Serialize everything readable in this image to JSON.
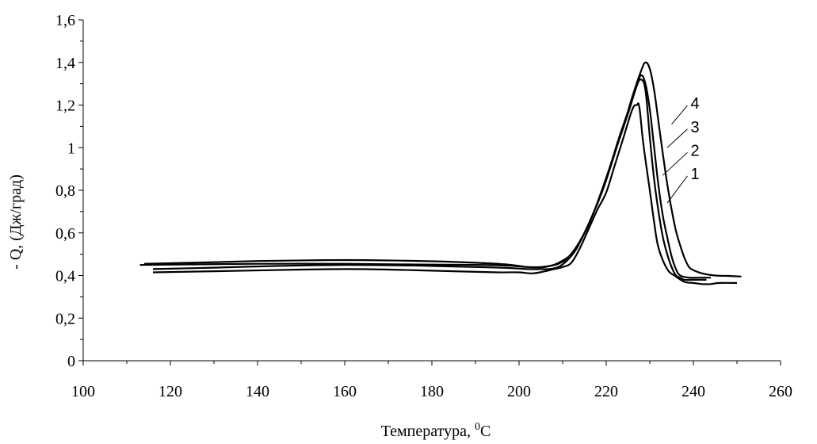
{
  "chart_data": {
    "type": "line",
    "title": "",
    "xlabel": "Температура, ",
    "xlabel_sup": "0",
    "xlabel_unit": "C",
    "ylabel": "- Q, (Дж/град)",
    "xlim": [
      100,
      260
    ],
    "ylim": [
      0,
      1.6
    ],
    "x_ticks": [
      100,
      120,
      140,
      160,
      180,
      200,
      220,
      240,
      260
    ],
    "x_tick_labels": [
      "100",
      "120",
      "140",
      "160",
      "180",
      "200",
      "220",
      "240",
      "260"
    ],
    "y_ticks": [
      0,
      0.2,
      0.4,
      0.6,
      0.8,
      1.0,
      1.2,
      1.4,
      1.6
    ],
    "y_tick_labels": [
      "0",
      "0,2",
      "0,4",
      "0,6",
      "0,8",
      "1",
      "1,2",
      "1,4",
      "1,6"
    ],
    "grid": false,
    "legend": "none",
    "line_color": "#000000",
    "series": [
      {
        "name": "1",
        "label_at": [
          239,
          0.86
        ],
        "leader_to": [
          234,
          0.74
        ],
        "points": [
          [
            116,
            0.415
          ],
          [
            130,
            0.42
          ],
          [
            150,
            0.428
          ],
          [
            160,
            0.43
          ],
          [
            170,
            0.428
          ],
          [
            185,
            0.42
          ],
          [
            195,
            0.415
          ],
          [
            200,
            0.415
          ],
          [
            203,
            0.41
          ],
          [
            206,
            0.42
          ],
          [
            208,
            0.43
          ],
          [
            210,
            0.44
          ],
          [
            212,
            0.46
          ],
          [
            214,
            0.53
          ],
          [
            216,
            0.62
          ],
          [
            218,
            0.71
          ],
          [
            220,
            0.79
          ],
          [
            222,
            0.92
          ],
          [
            224,
            1.05
          ],
          [
            226,
            1.18
          ],
          [
            227,
            1.2
          ],
          [
            227.6,
            1.19
          ],
          [
            228.5,
            1.02
          ],
          [
            230,
            0.8
          ],
          [
            231,
            0.65
          ],
          [
            232,
            0.53
          ],
          [
            234,
            0.43
          ],
          [
            236,
            0.395
          ],
          [
            238,
            0.37
          ],
          [
            240,
            0.365
          ],
          [
            242,
            0.36
          ],
          [
            244,
            0.36
          ],
          [
            246,
            0.365
          ],
          [
            250,
            0.365
          ]
        ]
      },
      {
        "name": "2",
        "label_at": [
          239,
          0.97
        ],
        "leader_to": [
          233,
          0.87
        ],
        "points": [
          [
            116,
            0.43
          ],
          [
            130,
            0.437
          ],
          [
            145,
            0.445
          ],
          [
            160,
            0.45
          ],
          [
            175,
            0.447
          ],
          [
            190,
            0.44
          ],
          [
            198,
            0.435
          ],
          [
            202,
            0.43
          ],
          [
            205,
            0.43
          ],
          [
            207,
            0.43
          ],
          [
            209,
            0.44
          ],
          [
            211,
            0.47
          ],
          [
            213,
            0.52
          ],
          [
            215,
            0.6
          ],
          [
            217,
            0.69
          ],
          [
            219,
            0.8
          ],
          [
            221,
            0.92
          ],
          [
            223,
            1.05
          ],
          [
            225,
            1.17
          ],
          [
            227,
            1.29
          ],
          [
            228,
            1.32
          ],
          [
            229,
            1.27
          ],
          [
            230,
            1.05
          ],
          [
            231,
            0.85
          ],
          [
            232,
            0.7
          ],
          [
            233,
            0.58
          ],
          [
            234,
            0.5
          ],
          [
            235,
            0.44
          ],
          [
            236,
            0.4
          ],
          [
            237,
            0.39
          ],
          [
            238,
            0.38
          ],
          [
            240,
            0.38
          ],
          [
            243,
            0.38
          ]
        ]
      },
      {
        "name": "3",
        "label_at": [
          239,
          1.08
        ],
        "leader_to": [
          234,
          1.0
        ],
        "points": [
          [
            113,
            0.45
          ],
          [
            125,
            0.452
          ],
          [
            140,
            0.455
          ],
          [
            160,
            0.455
          ],
          [
            175,
            0.452
          ],
          [
            190,
            0.45
          ],
          [
            197,
            0.447
          ],
          [
            202,
            0.44
          ],
          [
            205,
            0.44
          ],
          [
            207,
            0.445
          ],
          [
            209,
            0.455
          ],
          [
            211,
            0.48
          ],
          [
            213,
            0.53
          ],
          [
            215,
            0.6
          ],
          [
            217,
            0.69
          ],
          [
            219,
            0.79
          ],
          [
            221,
            0.91
          ],
          [
            223,
            1.04
          ],
          [
            225,
            1.16
          ],
          [
            227,
            1.29
          ],
          [
            228,
            1.34
          ],
          [
            229,
            1.3
          ],
          [
            230,
            1.18
          ],
          [
            231,
            1.0
          ],
          [
            232,
            0.82
          ],
          [
            233,
            0.68
          ],
          [
            234,
            0.58
          ],
          [
            235,
            0.49
          ],
          [
            236,
            0.43
          ],
          [
            237,
            0.4
          ],
          [
            239,
            0.39
          ],
          [
            241,
            0.39
          ],
          [
            244,
            0.39
          ]
        ]
      },
      {
        "name": "4",
        "label_at": [
          239,
          1.19
        ],
        "leader_to": [
          235,
          1.11
        ],
        "points": [
          [
            114,
            0.455
          ],
          [
            125,
            0.46
          ],
          [
            140,
            0.468
          ],
          [
            155,
            0.472
          ],
          [
            165,
            0.472
          ],
          [
            180,
            0.467
          ],
          [
            190,
            0.46
          ],
          [
            197,
            0.452
          ],
          [
            202,
            0.44
          ],
          [
            204,
            0.438
          ],
          [
            206,
            0.44
          ],
          [
            208,
            0.45
          ],
          [
            210,
            0.47
          ],
          [
            212,
            0.5
          ],
          [
            214,
            0.56
          ],
          [
            216,
            0.64
          ],
          [
            218,
            0.74
          ],
          [
            220,
            0.85
          ],
          [
            222,
            0.98
          ],
          [
            224,
            1.1
          ],
          [
            226,
            1.24
          ],
          [
            228,
            1.36
          ],
          [
            229,
            1.4
          ],
          [
            230,
            1.37
          ],
          [
            231,
            1.27
          ],
          [
            232,
            1.12
          ],
          [
            233,
            0.97
          ],
          [
            234,
            0.83
          ],
          [
            235,
            0.71
          ],
          [
            236,
            0.61
          ],
          [
            237,
            0.54
          ],
          [
            238,
            0.48
          ],
          [
            239,
            0.44
          ],
          [
            240,
            0.425
          ],
          [
            242,
            0.41
          ],
          [
            245,
            0.4
          ],
          [
            248,
            0.398
          ],
          [
            251,
            0.395
          ]
        ]
      }
    ]
  }
}
